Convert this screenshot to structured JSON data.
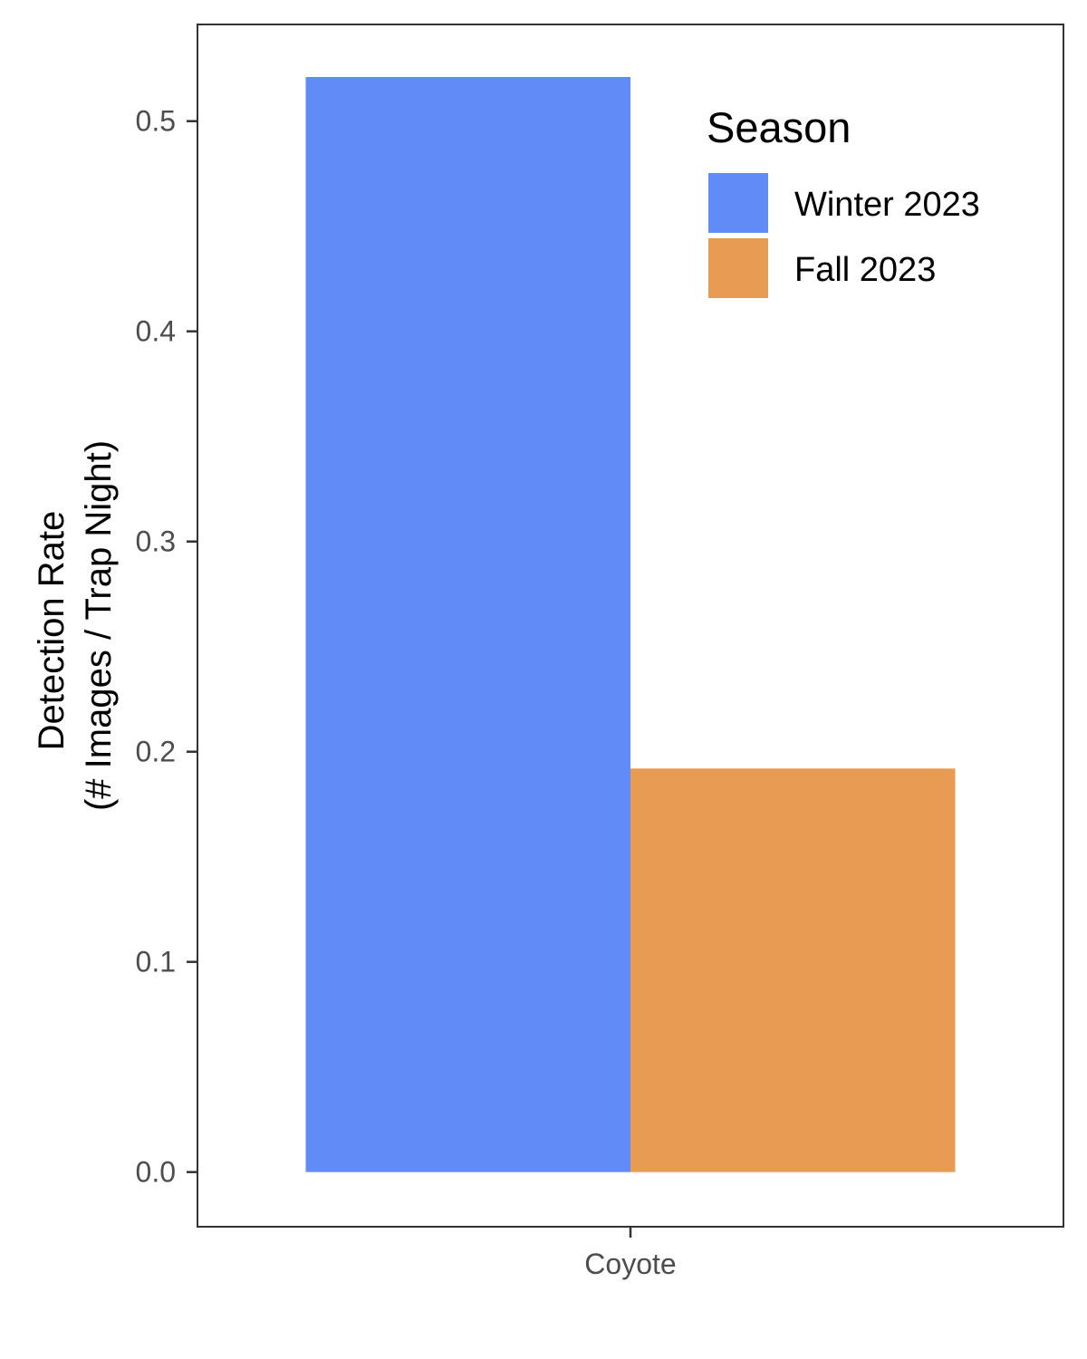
{
  "chart_data": {
    "type": "bar",
    "categories": [
      "Coyote"
    ],
    "series": [
      {
        "name": "Winter 2023",
        "values": [
          0.521
        ],
        "color": "#618CF7"
      },
      {
        "name": "Fall 2023",
        "values": [
          0.192
        ],
        "color": "#E89B52"
      }
    ],
    "ylabel": [
      "Detection Rate",
      "(# Images / Trap Night)"
    ],
    "ylim": [
      -0.026,
      0.546
    ],
    "yticks": [
      0.0,
      0.1,
      0.2,
      0.3,
      0.4,
      0.5
    ],
    "ytick_labels": [
      "0.0",
      "0.1",
      "0.2",
      "0.3",
      "0.4",
      "0.5"
    ],
    "legend": {
      "title": "Season",
      "position": "top-right"
    },
    "grid": false
  }
}
